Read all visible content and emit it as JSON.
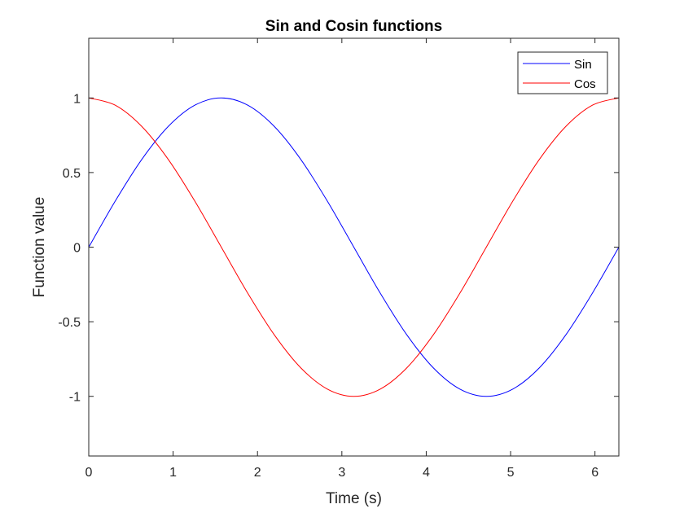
{
  "chart_data": {
    "type": "line",
    "title": "Sin and Cosin functions",
    "xlabel": "Time (s)",
    "ylabel": "Function value",
    "xlim": [
      0,
      6.2832
    ],
    "ylim": [
      -1.4,
      1.4
    ],
    "xticks": [
      0,
      1,
      2,
      3,
      4,
      5,
      6
    ],
    "xtick_labels": [
      "0",
      "1",
      "2",
      "3",
      "4",
      "5",
      "6"
    ],
    "yticks": [
      -1,
      -0.5,
      0,
      0.5,
      1
    ],
    "ytick_labels": [
      "-1",
      "-0.5",
      "0",
      "0.5",
      "1"
    ],
    "grid": false,
    "legend_position": "top-right",
    "x": [
      0,
      0.3142,
      0.6283,
      0.9425,
      1.2566,
      1.5708,
      1.885,
      2.1991,
      2.5133,
      2.8274,
      3.1416,
      3.4558,
      3.7699,
      4.0841,
      4.3982,
      4.7124,
      5.0265,
      5.3407,
      5.6549,
      5.969,
      6.2832
    ],
    "series": [
      {
        "name": "Sin",
        "color": "#0000ff",
        "values": [
          0,
          0.309,
          0.5878,
          0.809,
          0.9511,
          1,
          0.9511,
          0.809,
          0.5878,
          0.309,
          0,
          -0.309,
          -0.5878,
          -0.809,
          -0.9511,
          -1,
          -0.9511,
          -0.809,
          -0.5878,
          -0.309,
          0
        ]
      },
      {
        "name": "Cos",
        "color": "#ff0000",
        "values": [
          1,
          0.9511,
          0.809,
          0.5878,
          0.309,
          0,
          -0.309,
          -0.5878,
          -0.809,
          -0.9511,
          -1,
          -0.9511,
          -0.809,
          -0.5878,
          -0.309,
          0,
          0.309,
          0.5878,
          0.809,
          0.9511,
          1
        ]
      }
    ]
  }
}
